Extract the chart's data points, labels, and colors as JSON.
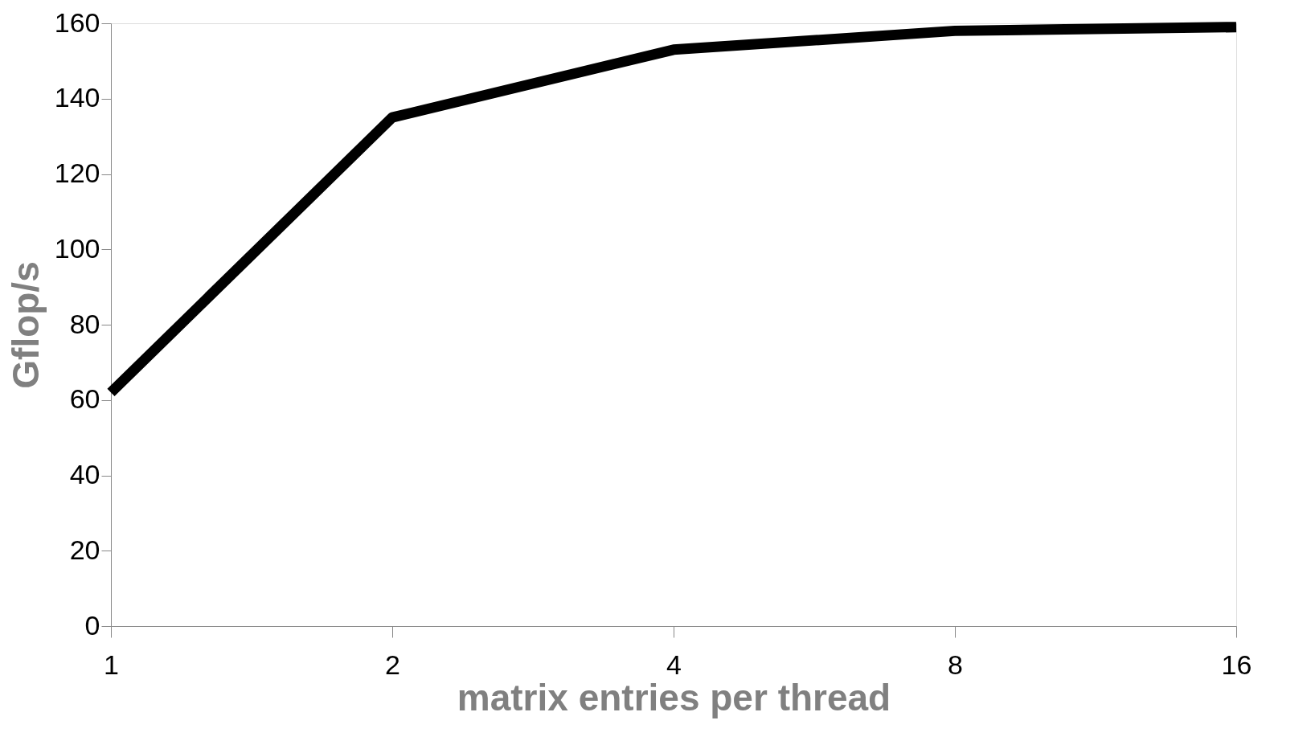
{
  "chart_data": {
    "type": "line",
    "xlabel": "matrix entries per thread",
    "ylabel": "Gflop/s",
    "categories": [
      "1",
      "2",
      "4",
      "8",
      "16"
    ],
    "series": [
      {
        "color": "#000000",
        "values": [
          62,
          135,
          153,
          158,
          159
        ]
      }
    ],
    "ylim": [
      0,
      160
    ],
    "yticks": [
      0,
      20,
      40,
      60,
      80,
      100,
      120,
      140,
      160
    ],
    "grid": false,
    "marker": "none",
    "line_style": "solid"
  }
}
